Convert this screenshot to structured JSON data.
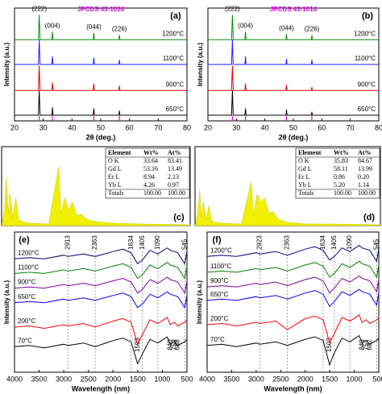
{
  "chart_data": [
    {
      "type": "line",
      "panel_label": "(a)",
      "title": "JPCDS 43-1014",
      "title_color": "#e000e0",
      "x_label": "2θ (deg.)",
      "y_label": "Intensity (a.u.)",
      "xlim": [
        20,
        80
      ],
      "xticks": [
        20,
        30,
        40,
        50,
        60,
        70,
        80
      ],
      "ylim": [
        0,
        100
      ],
      "x": [
        20,
        27,
        28.3,
        28.6,
        28.9,
        32,
        33.0,
        33.2,
        33.4,
        40,
        47.4,
        47.6,
        47.8,
        54,
        56.3,
        56.5,
        56.7,
        70,
        80
      ],
      "peaks": [
        {
          "label": "(222)",
          "x": 28.6
        },
        {
          "label": "(004)",
          "x": 33.2
        },
        {
          "label": "(044)",
          "x": 47.6
        },
        {
          "label": "(226)",
          "x": 56.5
        }
      ],
      "reference_lines": [
        28.6,
        33.2,
        47.6,
        56.5
      ],
      "reference_color": "#e000e0",
      "series": [
        {
          "name": "1200°C",
          "color": "#0a8a0a",
          "values": [
            72,
            72,
            72,
            94,
            72,
            72,
            72,
            79,
            72,
            72,
            72,
            78,
            72,
            72,
            72,
            76,
            72,
            72,
            72
          ]
        },
        {
          "name": "1100°C",
          "color": "#1a1aff",
          "values": [
            50,
            50,
            50,
            72,
            50,
            50,
            50,
            57,
            50,
            50,
            50,
            56,
            50,
            50,
            50,
            54,
            50,
            50,
            50
          ]
        },
        {
          "name": "900°C",
          "color": "#e00000",
          "values": [
            27,
            27,
            27,
            49,
            27,
            27,
            27,
            34,
            27,
            27,
            27,
            33,
            27,
            27,
            27,
            31,
            27,
            27,
            27
          ]
        },
        {
          "name": "650°C",
          "color": "#000000",
          "values": [
            5,
            5,
            5,
            27,
            5,
            5,
            5,
            12,
            5,
            5,
            5,
            11,
            5,
            5,
            5,
            9,
            5,
            5,
            5
          ]
        }
      ]
    },
    {
      "type": "line",
      "panel_label": "(b)",
      "title": "JPCDS 43-1014",
      "title_color": "#e000e0",
      "x_label": "2θ (deg.)",
      "y_label": "Intensity (a.u.)",
      "xlim": [
        20,
        80
      ],
      "xticks": [
        20,
        30,
        40,
        50,
        60,
        70,
        80
      ],
      "ylim": [
        0,
        100
      ],
      "x": [
        20,
        27,
        28.3,
        28.6,
        28.9,
        32,
        33.0,
        33.2,
        33.4,
        40,
        47.4,
        47.6,
        47.8,
        54,
        56.3,
        56.5,
        56.7,
        70,
        80
      ],
      "peaks": [
        {
          "label": "(222)",
          "x": 28.6
        },
        {
          "label": "(004)",
          "x": 33.2
        },
        {
          "label": "(044)",
          "x": 47.6
        },
        {
          "label": "(226)",
          "x": 56.5
        }
      ],
      "reference_lines": [
        28.6,
        33.2,
        47.6,
        56.5
      ],
      "reference_color": "#e000e0",
      "series": [
        {
          "name": "1200°C",
          "color": "#0a8a0a",
          "values": [
            72,
            72,
            72,
            94,
            72,
            72,
            72,
            79,
            72,
            72,
            72,
            77,
            72,
            72,
            72,
            76,
            72,
            72,
            72
          ]
        },
        {
          "name": "1100°C",
          "color": "#1a1aff",
          "values": [
            50,
            50,
            50,
            72,
            50,
            50,
            50,
            57,
            50,
            50,
            50,
            55,
            50,
            50,
            50,
            54,
            50,
            50,
            50
          ]
        },
        {
          "name": "900°C",
          "color": "#e00000",
          "values": [
            27,
            27,
            27,
            49,
            27,
            27,
            27,
            33,
            27,
            27,
            27,
            32,
            27,
            27,
            27,
            30,
            27,
            27,
            27
          ]
        },
        {
          "name": "650°C",
          "color": "#000000",
          "values": [
            5,
            5,
            5,
            27,
            5,
            5,
            5,
            11,
            5,
            5,
            5,
            10,
            5,
            5,
            5,
            8,
            5,
            5,
            5
          ]
        }
      ]
    },
    {
      "type": "area",
      "panel_label": "(c)",
      "color": "#f0f000",
      "xlim": [
        0,
        20
      ],
      "ylim": [
        0,
        100
      ],
      "x": [
        0,
        0.3,
        0.5,
        0.7,
        0.9,
        1.2,
        1.5,
        1.8,
        2.2,
        3,
        5,
        6.06,
        6.3,
        6.7,
        7.1,
        7.5,
        8,
        8.4,
        9,
        10,
        12,
        15,
        20
      ],
      "values": [
        0,
        20,
        60,
        15,
        40,
        10,
        35,
        8,
        5,
        3,
        2,
        75,
        15,
        35,
        20,
        30,
        12,
        15,
        8,
        5,
        3,
        2,
        1
      ],
      "table": {
        "columns": [
          "Element",
          "Wt%",
          "At%"
        ],
        "rows": [
          [
            "O K",
            "33.64",
            "83.41"
          ],
          [
            "Gd L",
            "53.16",
            "13.49"
          ],
          [
            "Er L",
            "8.94",
            "2.13"
          ],
          [
            "Yb L",
            "4.26",
            "0.97"
          ],
          [
            "Totals",
            "100.00",
            "100.00"
          ]
        ]
      }
    },
    {
      "type": "area",
      "panel_label": "(d)",
      "color": "#f0f000",
      "xlim": [
        0,
        20
      ],
      "ylim": [
        0,
        100
      ],
      "x": [
        0,
        0.3,
        0.5,
        0.7,
        0.9,
        1.2,
        1.5,
        1.8,
        2.2,
        3,
        5,
        6.06,
        6.3,
        6.7,
        7.1,
        7.5,
        8,
        8.4,
        9,
        10,
        12,
        15,
        20
      ],
      "values": [
        0,
        15,
        45,
        10,
        30,
        8,
        25,
        6,
        4,
        3,
        2,
        55,
        12,
        40,
        30,
        35,
        15,
        18,
        8,
        4,
        2,
        2,
        1
      ],
      "table": {
        "columns": [
          "Element",
          "Wt%",
          "At%"
        ],
        "rows": [
          [
            "O K",
            "35.83",
            "84.67"
          ],
          [
            "Gd L",
            "58.11",
            "13.99"
          ],
          [
            "Er L",
            "0.86",
            "0.20"
          ],
          [
            "Yb L",
            "5.20",
            "1.14"
          ],
          [
            "Totals",
            "100.00",
            "100.00"
          ]
        ]
      }
    },
    {
      "type": "line",
      "panel_label": "(e)",
      "x_label": "Wavelength (nm)",
      "y_label": "Intensity (a.u.)",
      "xlim": [
        4000,
        500
      ],
      "xticks": [
        4000,
        3500,
        3000,
        2500,
        2000,
        1500,
        1000,
        500
      ],
      "ylim": [
        -15,
        100
      ],
      "x": [
        4000,
        3700,
        3400,
        3000,
        2913,
        2600,
        2363,
        2000,
        1800,
        1634,
        1503,
        1405,
        1250,
        1090,
        900,
        840,
        759,
        688,
        545,
        500
      ],
      "upper_peaks": [
        2913,
        2363,
        1634,
        1405,
        1090,
        545
      ],
      "lower_peaks": [
        1503,
        840,
        759,
        688
      ],
      "series": [
        {
          "name": "1200°C",
          "color": "#000080",
          "values": [
            78,
            79,
            78,
            81,
            80,
            82,
            80,
            84,
            86,
            83,
            74,
            77,
            85,
            82,
            87,
            85,
            84,
            83,
            74,
            84
          ]
        },
        {
          "name": "1100°C",
          "color": "#008000",
          "values": [
            66,
            67,
            66,
            69,
            68,
            70,
            68,
            72,
            74,
            71,
            62,
            65,
            73,
            70,
            75,
            73,
            72,
            71,
            62,
            72
          ]
        },
        {
          "name": "900°C",
          "color": "#8000a0",
          "values": [
            54,
            55,
            54,
            57,
            56,
            58,
            56,
            60,
            62,
            59,
            50,
            53,
            61,
            58,
            63,
            61,
            60,
            59,
            50,
            60
          ]
        },
        {
          "name": "650°C",
          "color": "#0000ff",
          "values": [
            42,
            43,
            42,
            45,
            44,
            46,
            44,
            48,
            50,
            47,
            38,
            41,
            49,
            46,
            51,
            49,
            48,
            47,
            38,
            48
          ]
        },
        {
          "name": "200°C",
          "color": "#ff0000",
          "values": [
            22,
            23,
            21,
            24,
            23,
            25,
            22,
            27,
            29,
            26,
            8,
            16,
            28,
            25,
            30,
            24,
            26,
            23,
            26,
            28
          ]
        },
        {
          "name": "70°C",
          "color": "#000000",
          "values": [
            6,
            7,
            5,
            8,
            7,
            9,
            6,
            11,
            13,
            10,
            -8,
            0,
            12,
            9,
            14,
            8,
            10,
            7,
            10,
            12
          ]
        }
      ]
    },
    {
      "type": "line",
      "panel_label": "(f)",
      "x_label": "Wavelength (nm)",
      "y_label": "Intensity (a.u.)",
      "xlim": [
        4000,
        500
      ],
      "xticks": [
        4000,
        3500,
        3000,
        2500,
        2000,
        1500,
        1000,
        500
      ],
      "ylim": [
        -15,
        100
      ],
      "x": [
        4000,
        3700,
        3400,
        3000,
        2923,
        2600,
        2363,
        2000,
        1800,
        1634,
        1503,
        1405,
        1250,
        1090,
        900,
        840,
        757,
        682,
        545,
        500
      ],
      "upper_peaks": [
        2923,
        2363,
        1634,
        1405,
        1090,
        545
      ],
      "lower_peaks": [
        1503,
        840,
        757,
        682
      ],
      "series": [
        {
          "name": "1200°C",
          "color": "#000080",
          "values": [
            80,
            81,
            80,
            83,
            82,
            84,
            81,
            86,
            88,
            85,
            77,
            80,
            87,
            84,
            89,
            87,
            86,
            85,
            76,
            86
          ]
        },
        {
          "name": "1100°C",
          "color": "#008000",
          "values": [
            67,
            68,
            67,
            70,
            69,
            71,
            68,
            73,
            75,
            72,
            63,
            66,
            74,
            71,
            76,
            74,
            73,
            72,
            63,
            73
          ]
        },
        {
          "name": "900°C",
          "color": "#8000a0",
          "values": [
            55,
            56,
            55,
            58,
            57,
            59,
            56,
            61,
            63,
            60,
            50,
            54,
            62,
            59,
            64,
            62,
            61,
            60,
            51,
            61
          ]
        },
        {
          "name": "650°C",
          "color": "#0000ff",
          "values": [
            44,
            45,
            44,
            47,
            46,
            48,
            45,
            50,
            52,
            49,
            39,
            43,
            51,
            48,
            53,
            51,
            50,
            49,
            40,
            50
          ]
        },
        {
          "name": "200°C",
          "color": "#ff0000",
          "values": [
            24,
            25,
            23,
            26,
            25,
            27,
            20,
            29,
            31,
            28,
            9,
            17,
            30,
            27,
            32,
            26,
            28,
            25,
            28,
            30
          ]
        },
        {
          "name": "70°C",
          "color": "#000000",
          "values": [
            7,
            8,
            6,
            9,
            8,
            10,
            7,
            12,
            14,
            11,
            -9,
            1,
            13,
            10,
            15,
            9,
            11,
            8,
            11,
            13
          ]
        }
      ]
    }
  ]
}
